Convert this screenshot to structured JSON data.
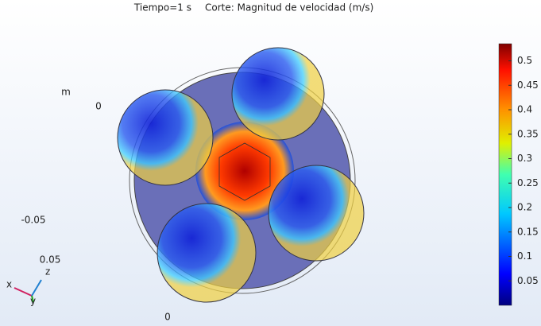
{
  "title": {
    "time": "Tiempo=1 s",
    "cut": "Corte: Magnitud de velocidad (m/s)"
  },
  "axes": {
    "unit": "m",
    "labels": [
      "0",
      "-0.05",
      "0.05",
      "0"
    ]
  },
  "triad": {
    "x": "x",
    "y": "y",
    "z": "z"
  },
  "colorbar": {
    "range": [
      0,
      0.535
    ],
    "ticks": [
      0.05,
      0.1,
      0.15,
      0.2,
      0.25,
      0.3,
      0.35,
      0.4,
      0.45,
      0.5
    ]
  }
}
